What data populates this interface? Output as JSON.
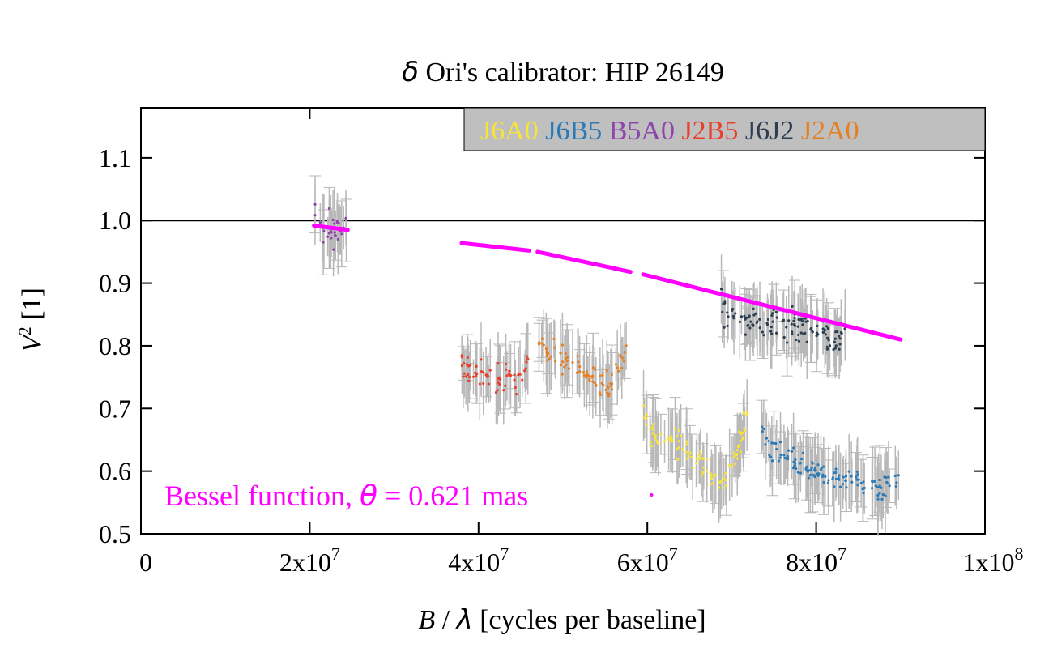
{
  "chart_data": {
    "type": "scatter",
    "title": {
      "symbol": "δ",
      "text": " Ori's calibrator: HIP 26149"
    },
    "xlabel": {
      "symbol_b": "B",
      "slash": " / ",
      "symbol_lambda": "λ",
      "text": " [cycles per baseline]"
    },
    "ylabel": {
      "base": "V",
      "sup": "2",
      "text": " [1]"
    },
    "xlim": [
      0,
      100000000
    ],
    "ylim": [
      0.5,
      1.18
    ],
    "xticks": [
      {
        "value": 0,
        "mantissa": "0",
        "exp": ""
      },
      {
        "value": 20000000,
        "mantissa": "2x10",
        "exp": "7"
      },
      {
        "value": 40000000,
        "mantissa": "4x10",
        "exp": "7"
      },
      {
        "value": 60000000,
        "mantissa": "6x10",
        "exp": "7"
      },
      {
        "value": 80000000,
        "mantissa": "8x10",
        "exp": "7"
      },
      {
        "value": 100000000,
        "mantissa": "1x10",
        "exp": "8"
      }
    ],
    "yticks": [
      {
        "value": 0.5,
        "label": "0.5"
      },
      {
        "value": 0.6,
        "label": "0.6"
      },
      {
        "value": 0.7,
        "label": "0.7"
      },
      {
        "value": 0.8,
        "label": "0.8"
      },
      {
        "value": 0.9,
        "label": "0.9"
      },
      {
        "value": 1.0,
        "label": "1.0"
      },
      {
        "value": 1.1,
        "label": "1.1"
      }
    ],
    "reference_line": {
      "y": 1.0
    },
    "legend": {
      "placement": "top-right",
      "background": "#bfbfbf"
    },
    "error_bar_color": "#b8b8b8",
    "series": [
      {
        "name": "J6A0",
        "color": "#f7e33a",
        "points": [
          [
            59500000,
            0.685
          ],
          [
            60500000,
            0.665
          ],
          [
            62000000,
            0.655
          ],
          [
            64000000,
            0.64
          ],
          [
            66000000,
            0.62
          ],
          [
            68000000,
            0.59
          ],
          [
            69000000,
            0.575
          ],
          [
            70000000,
            0.605
          ],
          [
            71000000,
            0.645
          ],
          [
            72000000,
            0.7
          ]
        ],
        "spread": 0.018
      },
      {
        "name": "J6B5",
        "color": "#2a7ab8",
        "points": [
          [
            73500000,
            0.67
          ],
          [
            74500000,
            0.64
          ],
          [
            76000000,
            0.625
          ],
          [
            78000000,
            0.61
          ],
          [
            80000000,
            0.6
          ],
          [
            82000000,
            0.59
          ],
          [
            84000000,
            0.585
          ],
          [
            86000000,
            0.58
          ],
          [
            87500000,
            0.57
          ],
          [
            88500000,
            0.575
          ],
          [
            89500000,
            0.59
          ],
          [
            90000000,
            0.6
          ]
        ],
        "spread": 0.016
      },
      {
        "name": "B5A0",
        "color": "#8e44ad",
        "points": [
          [
            20500000,
            1.0
          ],
          [
            21500000,
            0.985
          ],
          [
            22500000,
            0.99
          ],
          [
            23500000,
            0.985
          ],
          [
            24500000,
            0.995
          ]
        ],
        "spread": 0.03
      },
      {
        "name": "J2B5",
        "color": "#e8402a",
        "points": [
          [
            38000000,
            0.77
          ],
          [
            39000000,
            0.755
          ],
          [
            40000000,
            0.752
          ],
          [
            42000000,
            0.748
          ],
          [
            44000000,
            0.745
          ],
          [
            45000000,
            0.748
          ],
          [
            46000000,
            0.775
          ]
        ],
        "spread": 0.018
      },
      {
        "name": "J6J2",
        "color": "#2c3e50",
        "points": [
          [
            68500000,
            0.88
          ],
          [
            69500000,
            0.855
          ],
          [
            71000000,
            0.845
          ],
          [
            73000000,
            0.84
          ],
          [
            75000000,
            0.835
          ],
          [
            77000000,
            0.835
          ],
          [
            79000000,
            0.83
          ],
          [
            81000000,
            0.82
          ],
          [
            82500000,
            0.81
          ],
          [
            83500000,
            0.815
          ]
        ],
        "spread": 0.022
      },
      {
        "name": "J2A0",
        "color": "#e67e22",
        "points": [
          [
            47000000,
            0.8
          ],
          [
            48000000,
            0.79
          ],
          [
            50000000,
            0.78
          ],
          [
            52000000,
            0.765
          ],
          [
            54000000,
            0.74
          ],
          [
            55500000,
            0.73
          ],
          [
            56500000,
            0.755
          ],
          [
            57500000,
            0.8
          ]
        ],
        "spread": 0.018
      }
    ],
    "model": {
      "label_text": "Bessel function, ",
      "label_symbol": "θ",
      "label_value": " = 0.621 mas",
      "color": "#ff00ff",
      "segments": [
        [
          [
            20500000,
            0.992
          ],
          [
            24500000,
            0.985
          ]
        ],
        [
          [
            38000000,
            0.964
          ],
          [
            46000000,
            0.952
          ]
        ],
        [
          [
            47000000,
            0.95
          ],
          [
            58000000,
            0.918
          ]
        ],
        [
          [
            59500000,
            0.914
          ],
          [
            90000000,
            0.81
          ]
        ]
      ],
      "outlier": [
        60500000,
        0.562
      ]
    }
  }
}
